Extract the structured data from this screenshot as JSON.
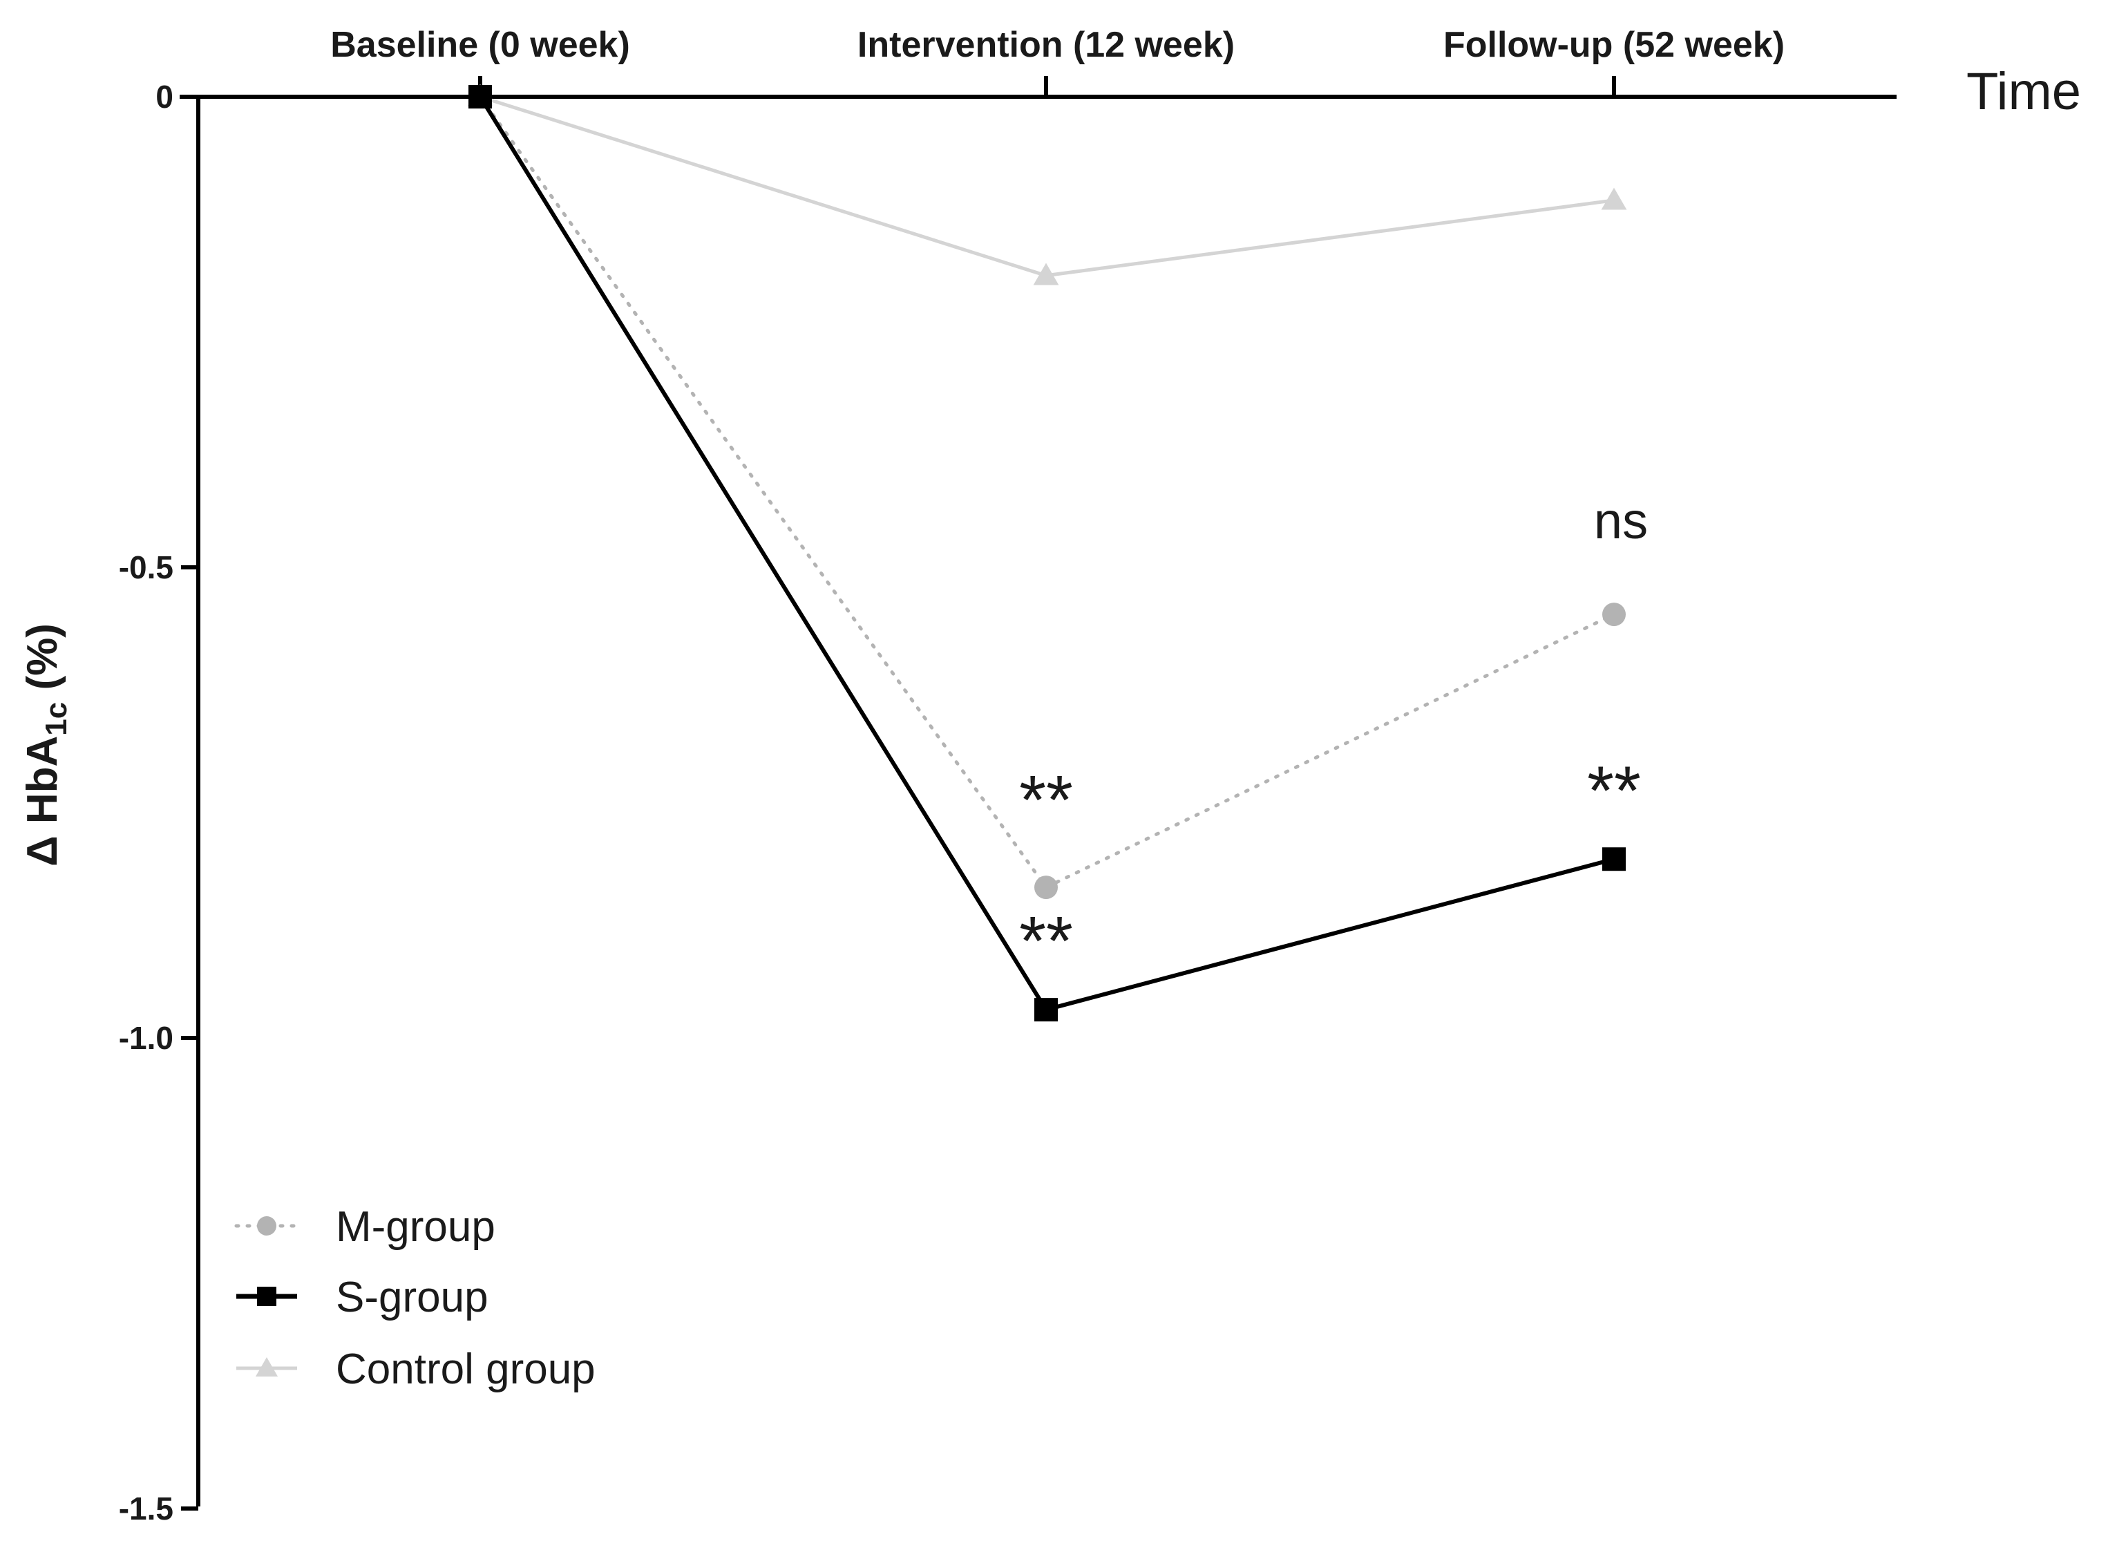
{
  "chart_data": {
    "type": "line",
    "title": "",
    "xlabel": "Time",
    "ylabel": "Δ HbA1c (%)",
    "ylabel_parts": {
      "prefix": "Δ HbA",
      "subscript": "1c",
      "suffix": " (%)"
    },
    "categories": [
      "Baseline (0 week)",
      "Intervention (12 week)",
      "Follow-up (52 week)"
    ],
    "ylim": [
      -1.5,
      0
    ],
    "yticks": [
      0,
      -0.5,
      -1.0,
      -1.5
    ],
    "ytick_labels": [
      "0",
      "-0.5",
      "-1.0",
      "-1.5"
    ],
    "series": [
      {
        "name": "M-group",
        "values": [
          0,
          -0.84,
          -0.55
        ],
        "color": "#b3b3b3",
        "marker": "circle",
        "line": "dotted"
      },
      {
        "name": "S-group",
        "values": [
          0,
          -0.97,
          -0.81
        ],
        "color": "#000000",
        "marker": "square",
        "line": "solid"
      },
      {
        "name": "Control group",
        "values": [
          0,
          -0.19,
          -0.11
        ],
        "color": "#d4d4d4",
        "marker": "triangle",
        "line": "solid"
      }
    ],
    "annotations": [
      {
        "text": "**",
        "category": 1,
        "y": -0.74
      },
      {
        "text": "**",
        "category": 1,
        "y": -0.89
      },
      {
        "text": "**",
        "category": 2,
        "y": -0.73
      },
      {
        "text": "ns",
        "category": 2,
        "y": -0.45
      }
    ],
    "legend": {
      "position": "bottom-left"
    },
    "grid": false
  }
}
